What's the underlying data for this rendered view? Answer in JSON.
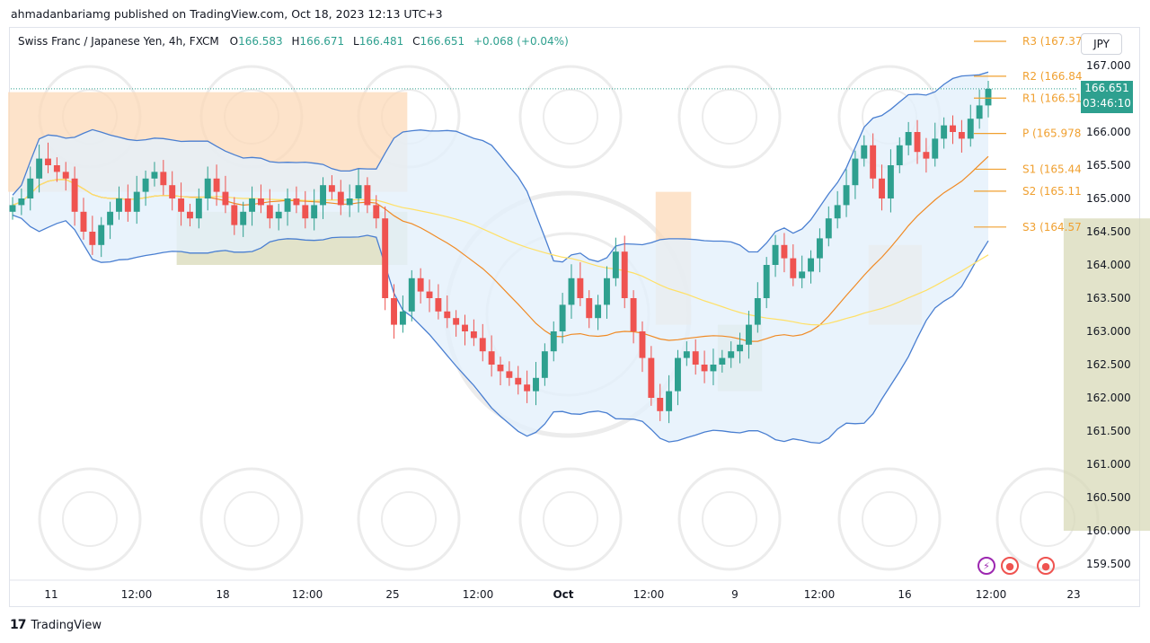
{
  "header": {
    "publisher": "ahmadanbariamg published on TradingView.com, Oct 18, 2023 12:13 UTC+3"
  },
  "legend": {
    "symbol": "Swiss Franc / Japanese Yen, 4h, FXCM",
    "open_label": "O",
    "open": "166.583",
    "high_label": "H",
    "high": "166.671",
    "low_label": "L",
    "low": "166.481",
    "close_label": "C",
    "close": "166.651",
    "change": "+0.068 (+0.04%)"
  },
  "currency": "JPY",
  "last_price": {
    "value": "166.651",
    "countdown": "03:46:10"
  },
  "footer": {
    "logo": "17",
    "brand": "TradingView"
  },
  "colors": {
    "up": "#2ea08f",
    "down": "#ef5350",
    "bb": "#4a7fd1",
    "bb_fill": "#e3f0fb",
    "sma_short": "#f08a24",
    "sma_long": "#ffe066",
    "pivot": "#f0a030",
    "zone_supply": "#fcd9b8",
    "zone_demand": "#d8d9b8",
    "logo_icon": "star-logo-icon"
  },
  "chart_data": {
    "type": "candlestick",
    "y_axis": {
      "min": 159.5,
      "max": 167.0,
      "ticks": [
        "167.000",
        "166.500",
        "166.000",
        "165.500",
        "165.000",
        "164.500",
        "164.000",
        "163.500",
        "163.000",
        "162.500",
        "162.000",
        "161.500",
        "161.000",
        "160.500",
        "160.000",
        "159.500"
      ]
    },
    "x_axis": {
      "ticks": [
        "11",
        "12:00",
        "18",
        "12:00",
        "25",
        "12:00",
        "Oct",
        "12:00",
        "9",
        "12:00",
        "16",
        "12:00",
        "23"
      ]
    },
    "pivots": [
      {
        "label": "R3 (167.37",
        "value": 167.37
      },
      {
        "label": "R2 (166.84",
        "value": 166.84
      },
      {
        "label": "R1 (166.51",
        "value": 166.51
      },
      {
        "label": "P (165.978",
        "value": 165.978
      },
      {
        "label": "S1 (165.44",
        "value": 165.44
      },
      {
        "label": "S2 (165.11",
        "value": 165.11
      },
      {
        "label": "S3 (164.57",
        "value": 164.57
      }
    ],
    "candles_close": [
      164.9,
      165.0,
      165.3,
      165.6,
      165.5,
      165.4,
      165.3,
      164.8,
      164.5,
      164.3,
      164.6,
      164.8,
      165.0,
      164.8,
      165.1,
      165.3,
      165.4,
      165.2,
      165.0,
      164.8,
      164.7,
      165.0,
      165.3,
      165.1,
      164.9,
      164.6,
      164.8,
      165.0,
      164.9,
      164.7,
      164.8,
      165.0,
      164.9,
      164.7,
      164.9,
      165.2,
      165.1,
      164.9,
      165.0,
      165.2,
      164.9,
      164.7,
      163.5,
      163.1,
      163.3,
      163.8,
      163.6,
      163.5,
      163.3,
      163.2,
      163.1,
      163.0,
      162.9,
      162.7,
      162.5,
      162.4,
      162.3,
      162.2,
      162.1,
      162.3,
      162.7,
      163.0,
      163.4,
      163.8,
      163.5,
      163.2,
      163.4,
      163.8,
      164.2,
      163.5,
      163.0,
      162.6,
      162.0,
      161.8,
      162.1,
      162.6,
      162.7,
      162.5,
      162.4,
      162.5,
      162.6,
      162.7,
      162.8,
      163.1,
      163.5,
      164.0,
      164.3,
      164.1,
      163.8,
      163.9,
      164.1,
      164.4,
      164.7,
      164.9,
      165.2,
      165.6,
      165.8,
      165.3,
      165.0,
      165.5,
      165.8,
      166.0,
      165.7,
      165.6,
      165.9,
      166.1,
      166.0,
      165.9,
      166.2,
      166.4,
      166.65
    ],
    "zones": [
      {
        "kind": "supply",
        "from_index": 0,
        "to_index": 44,
        "top": 166.6,
        "bottom": 165.1
      },
      {
        "kind": "demand",
        "from_index": 19,
        "to_index": 44,
        "top": 164.8,
        "bottom": 164.0
      },
      {
        "kind": "supply",
        "from_index": 73,
        "to_index": 76,
        "top": 165.1,
        "bottom": 163.1
      },
      {
        "kind": "demand",
        "from_index": 80,
        "to_index": 84,
        "top": 163.1,
        "bottom": 162.1
      },
      {
        "kind": "supply",
        "from_index": 97,
        "to_index": 102,
        "top": 164.3,
        "bottom": 163.1
      },
      {
        "kind": "demand",
        "from_index": 119,
        "to_index": 130,
        "top": 164.7,
        "bottom": 160.0
      }
    ]
  }
}
